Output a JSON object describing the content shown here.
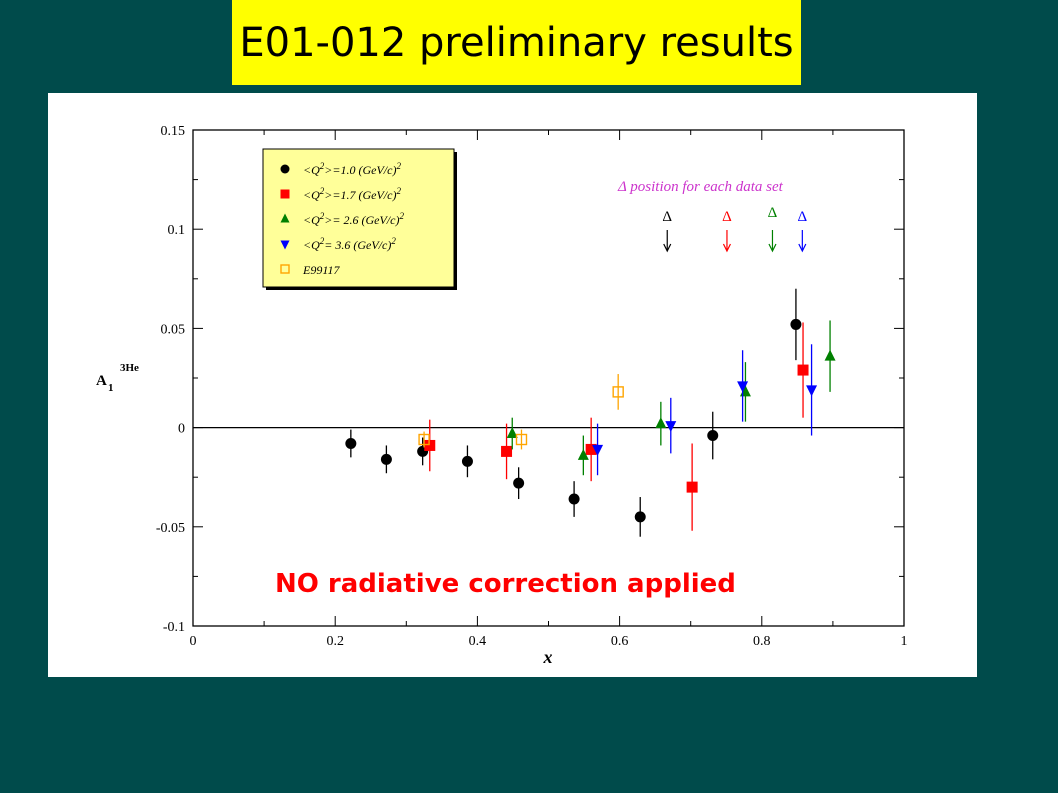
{
  "slide": {
    "title": "E01-012 preliminary results",
    "background": "#004b4b",
    "title_bg": "#ffff00"
  },
  "chart_data": {
    "type": "scatter",
    "title": "",
    "xlabel": "x",
    "ylabel": "A",
    "ylabel_sub": "1",
    "ylabel_sup": "3He",
    "xlim": [
      0,
      1
    ],
    "ylim": [
      -0.1,
      0.15
    ],
    "xticks": [
      0,
      0.2,
      0.4,
      0.6,
      0.8,
      1
    ],
    "xtick_labels": [
      "0",
      "0.2",
      "0.4",
      "0.6",
      "0.8",
      "1"
    ],
    "yticks": [
      -0.1,
      -0.05,
      0,
      0.05,
      0.1,
      0.15
    ],
    "ytick_labels": [
      "-0.1",
      "-0.05",
      "0",
      "0.05",
      "0.1",
      "0.15"
    ],
    "legend_position": "top-left",
    "series": [
      {
        "name": "<Q²>=1.0 (GeV/c)²",
        "legend_main": "<Q",
        "legend_sup": "2",
        "legend_rest": ">=1.0 (GeV/c)",
        "legend_sup2": "2",
        "color": "#000000",
        "marker": "circle",
        "points": [
          {
            "x": 0.222,
            "y": -0.008,
            "err": 0.007
          },
          {
            "x": 0.272,
            "y": -0.016,
            "err": 0.007
          },
          {
            "x": 0.323,
            "y": -0.012,
            "err": 0.007
          },
          {
            "x": 0.386,
            "y": -0.017,
            "err": 0.008
          },
          {
            "x": 0.458,
            "y": -0.028,
            "err": 0.008
          },
          {
            "x": 0.536,
            "y": -0.036,
            "err": 0.009
          },
          {
            "x": 0.629,
            "y": -0.045,
            "err": 0.01
          },
          {
            "x": 0.731,
            "y": -0.004,
            "err": 0.012
          },
          {
            "x": 0.848,
            "y": 0.052,
            "err": 0.018
          }
        ]
      },
      {
        "name": "<Q²>=1.7 (GeV/c)²",
        "legend_main": "<Q",
        "legend_sup": "2",
        "legend_rest": ">=1.7 (GeV/c)",
        "legend_sup2": "2",
        "color": "#ff0000",
        "marker": "square",
        "points": [
          {
            "x": 0.333,
            "y": -0.009,
            "err": 0.013
          },
          {
            "x": 0.441,
            "y": -0.012,
            "err": 0.014
          },
          {
            "x": 0.56,
            "y": -0.011,
            "err": 0.016
          },
          {
            "x": 0.702,
            "y": -0.03,
            "err": 0.022
          },
          {
            "x": 0.858,
            "y": 0.029,
            "err": 0.024
          }
        ]
      },
      {
        "name": "<Q²>= 2.6 (GeV/c)²",
        "legend_main": "<Q",
        "legend_sup": "2",
        "legend_rest": ">= 2.6 (GeV/c)",
        "legend_sup2": "2",
        "color": "#008000",
        "marker": "triangle-up",
        "points": [
          {
            "x": 0.449,
            "y": -0.003,
            "err": 0.008
          },
          {
            "x": 0.549,
            "y": -0.014,
            "err": 0.01
          },
          {
            "x": 0.658,
            "y": 0.002,
            "err": 0.011
          },
          {
            "x": 0.777,
            "y": 0.018,
            "err": 0.015
          },
          {
            "x": 0.896,
            "y": 0.036,
            "err": 0.018
          }
        ]
      },
      {
        "name": "<Q²>= 3.6 (GeV/c)²",
        "legend_main": "<Q",
        "legend_sup": "2",
        "legend_rest": "= 3.6 (GeV/c)",
        "legend_sup2": "2",
        "color": "#0000ff",
        "marker": "triangle-down",
        "points": [
          {
            "x": 0.569,
            "y": -0.011,
            "err": 0.013
          },
          {
            "x": 0.672,
            "y": 0.001,
            "err": 0.014
          },
          {
            "x": 0.773,
            "y": 0.021,
            "err": 0.018
          },
          {
            "x": 0.87,
            "y": 0.019,
            "err": 0.023
          }
        ]
      },
      {
        "name": "E99117",
        "legend_main": "E99117",
        "legend_sup": "",
        "legend_rest": "",
        "legend_sup2": "",
        "color": "#ffa500",
        "marker": "open-square",
        "points": [
          {
            "x": 0.325,
            "y": -0.006,
            "err": 0.004
          },
          {
            "x": 0.462,
            "y": -0.006,
            "err": 0.005
          },
          {
            "x": 0.598,
            "y": 0.018,
            "err": 0.009
          }
        ]
      }
    ],
    "delta_annotation": {
      "label": "Δ position for each data set",
      "label_color": "#cc33cc",
      "symbol": "Δ",
      "markers": [
        {
          "color": "#000000",
          "x": 0.667
        },
        {
          "color": "#ff0000",
          "x": 0.751
        },
        {
          "color": "#008000",
          "x": 0.815
        },
        {
          "color": "#0000ff",
          "x": 0.857
        }
      ]
    },
    "annotation": {
      "text": "NO radiative correction applied",
      "color": "#ff0000"
    }
  }
}
